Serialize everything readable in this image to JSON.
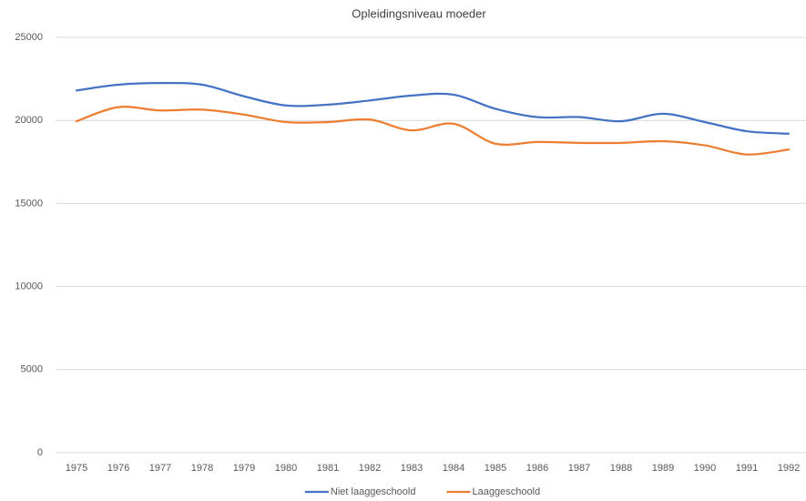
{
  "chart_data": {
    "type": "line",
    "title": "Opleidingsniveau moeder",
    "categories": [
      "1975",
      "1976",
      "1977",
      "1978",
      "1979",
      "1980",
      "1981",
      "1982",
      "1983",
      "1984",
      "1985",
      "1986",
      "1987",
      "1988",
      "1989",
      "1990",
      "1991",
      "1992"
    ],
    "series": [
      {
        "name": "Niet laaggeschoold",
        "color": "#4472c4",
        "values": [
          21800,
          22150,
          22250,
          22150,
          21450,
          20900,
          20950,
          21200,
          21500,
          21550,
          20700,
          20200,
          20200,
          19950,
          20400,
          19900,
          19350,
          19200
        ]
      },
      {
        "name": "Laaggeschoold",
        "color": "#ed7d31",
        "values": [
          19950,
          20800,
          20600,
          20650,
          20350,
          19900,
          19900,
          20050,
          19400,
          19800,
          18600,
          18700,
          18650,
          18650,
          18750,
          18500,
          17950,
          18250
        ]
      }
    ],
    "ylim": [
      0,
      25000
    ],
    "yticks": [
      0,
      5000,
      10000,
      15000,
      20000,
      25000
    ],
    "grid": true,
    "legend": "bottom",
    "smooth": true
  }
}
